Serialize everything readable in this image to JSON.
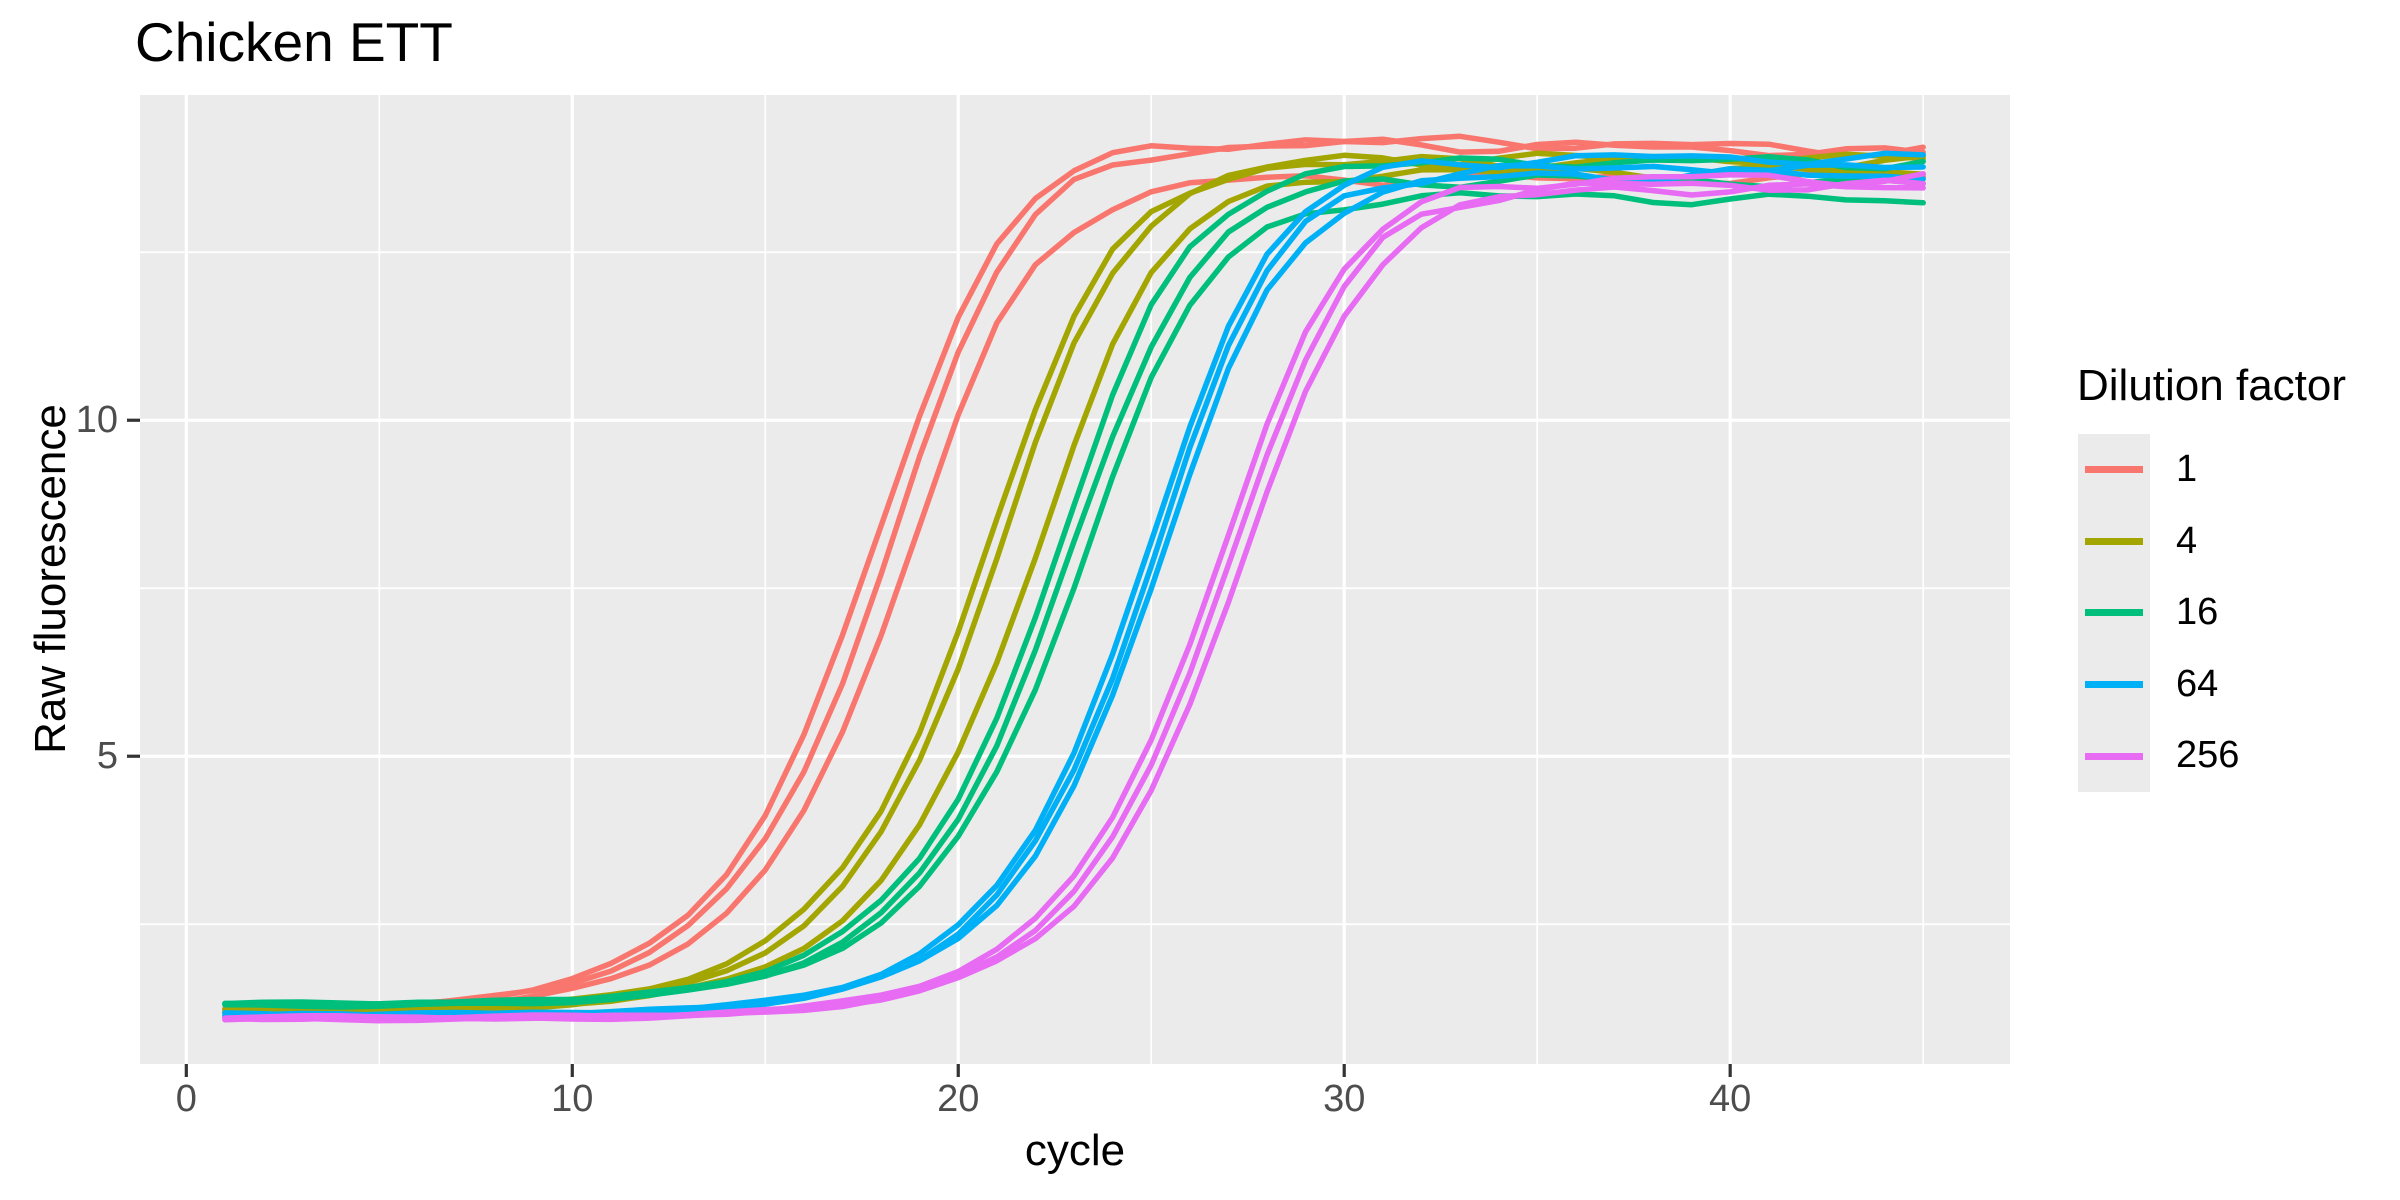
{
  "chart_data": {
    "type": "line",
    "title": "Chicken ETT",
    "xlabel": "cycle",
    "ylabel": "Raw fluorescence",
    "xlim": [
      -1.2,
      47.25
    ],
    "ylim": [
      0.42,
      14.84
    ],
    "x_ticks": [
      0,
      10,
      20,
      30,
      40
    ],
    "y_ticks": [
      5,
      10
    ],
    "x_minor_ticks": [
      5,
      15,
      25,
      35,
      45
    ],
    "y_minor_ticks": [
      2.5,
      7.5,
      12.5
    ],
    "cycles": {
      "start": 1,
      "end": 45,
      "step": 1
    },
    "grid": true,
    "panel_bg": "#EBEBEB",
    "gridline_color": "#FFFFFF",
    "tick_color": "#333333",
    "tick_label_color": "#4D4D4D",
    "legend": {
      "title": "Dilution factor",
      "position": "right",
      "entries": [
        {
          "label": "1",
          "color": "#F8766D"
        },
        {
          "label": "4",
          "color": "#A3A500"
        },
        {
          "label": "16",
          "color": "#00BF7D"
        },
        {
          "label": "64",
          "color": "#00B0F6"
        },
        {
          "label": "256",
          "color": "#E76BF3"
        }
      ]
    },
    "model": {
      "type": "generalized_logistic",
      "formula": "F(c) = base + (plateau - base) / (1 + exp(-(c - m)/k))^nu",
      "nu": 0.55
    },
    "series": [
      {
        "dilution_factor": "1",
        "color": "#F8766D",
        "replicates": [
          {
            "base": 1.2,
            "plateau": 14.15,
            "m": 18.95,
            "k": 1.5,
            "half_rise_cycle": 17.55,
            "phase": 0.8,
            "tail_drift": -0.012
          },
          {
            "base": 1.22,
            "plateau": 14.1,
            "m": 19.35,
            "k": 1.5,
            "half_rise_cycle": 17.95,
            "phase": 2.4,
            "tail_drift": -0.01
          },
          {
            "base": 1.18,
            "plateau": 13.6,
            "m": 19.75,
            "k": 1.5,
            "half_rise_cycle": 18.35,
            "phase": 4.1,
            "tail_drift": 0
          }
        ]
      },
      {
        "dilution_factor": "4",
        "color": "#A3A500",
        "replicates": [
          {
            "base": 1.2,
            "plateau": 13.85,
            "m": 21.8,
            "k": 1.5,
            "half_rise_cycle": 20.4,
            "phase": 1.3,
            "tail_drift": 0
          },
          {
            "base": 1.17,
            "plateau": 13.9,
            "m": 22.15,
            "k": 1.5,
            "half_rise_cycle": 20.75,
            "phase": 3.0,
            "tail_drift": 0
          },
          {
            "base": 1.22,
            "plateau": 13.7,
            "m": 23.05,
            "k": 1.5,
            "half_rise_cycle": 21.65,
            "phase": 5.2,
            "tail_drift": 0
          }
        ]
      },
      {
        "dilution_factor": "16",
        "color": "#00BF7D",
        "replicates": [
          {
            "base": 1.3,
            "plateau": 13.85,
            "m": 23.7,
            "k": 1.5,
            "half_rise_cycle": 22.3,
            "phase": 0.4,
            "tail_drift": 0
          },
          {
            "base": 1.28,
            "plateau": 13.6,
            "m": 23.95,
            "k": 1.5,
            "half_rise_cycle": 22.55,
            "phase": 2.8,
            "tail_drift": -0.006
          },
          {
            "base": 1.32,
            "plateau": 13.35,
            "m": 24.25,
            "k": 1.5,
            "half_rise_cycle": 22.85,
            "phase": 4.9,
            "tail_drift": -0.008
          }
        ]
      },
      {
        "dilution_factor": "64",
        "color": "#00B0F6",
        "replicates": [
          {
            "base": 1.15,
            "plateau": 13.9,
            "m": 25.95,
            "k": 1.45,
            "half_rise_cycle": 24.6,
            "phase": 1.9,
            "tail_drift": 0
          },
          {
            "base": 1.13,
            "plateau": 13.75,
            "m": 26.1,
            "k": 1.45,
            "half_rise_cycle": 24.75,
            "phase": 3.6,
            "tail_drift": 0
          },
          {
            "base": 1.16,
            "plateau": 13.65,
            "m": 26.3,
            "k": 1.45,
            "half_rise_cycle": 24.95,
            "phase": 5.7,
            "tail_drift": 0
          }
        ]
      },
      {
        "dilution_factor": "256",
        "color": "#E76BF3",
        "replicates": [
          {
            "base": 1.1,
            "plateau": 13.6,
            "m": 27.8,
            "k": 1.5,
            "half_rise_cycle": 26.4,
            "phase": 0.9,
            "tail_drift": 0
          },
          {
            "base": 1.08,
            "plateau": 13.5,
            "m": 28.05,
            "k": 1.5,
            "half_rise_cycle": 26.65,
            "phase": 2.2,
            "tail_drift": 0
          },
          {
            "base": 1.12,
            "plateau": 13.45,
            "m": 28.4,
            "k": 1.5,
            "half_rise_cycle": 27.0,
            "phase": 4.5,
            "tail_drift": 0
          }
        ]
      }
    ],
    "style": {
      "line_width": 5.5,
      "wiggle": {
        "amplitude1": 0.055,
        "freq1": 0.82,
        "amplitude2": 0.045,
        "freq2": 1.53,
        "baseline_amplitude": 0.02
      }
    }
  }
}
